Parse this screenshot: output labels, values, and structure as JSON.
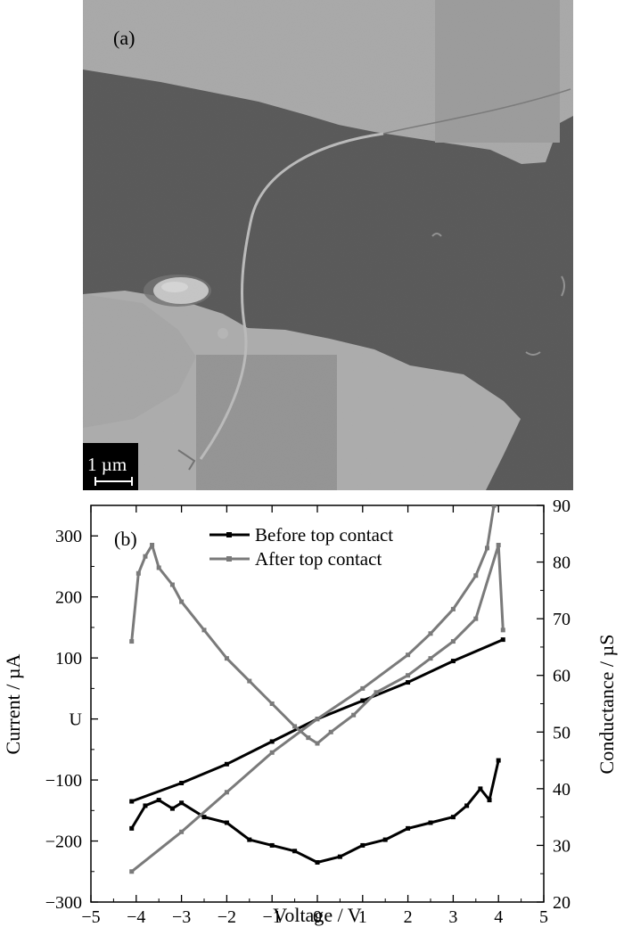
{
  "panel_a": {
    "label": "(a)",
    "scale_bar_label": "1 µm"
  },
  "panel_b": {
    "label": "(b)"
  },
  "chart_data": {
    "type": "line",
    "xlabel": "Voltage / V",
    "ylabel_left": "Current  / µA",
    "ylabel_right": "Conductance / µS",
    "xlim": [
      -5,
      5
    ],
    "ylim_left": [
      -300,
      350
    ],
    "ylim_right": [
      20,
      90
    ],
    "x_ticks": [
      "−5",
      "−4",
      "−3",
      "−2",
      "−1",
      "0",
      "1",
      "2",
      "3",
      "4",
      "5"
    ],
    "y_left_ticks": [
      {
        "value": 300,
        "label": "300"
      },
      {
        "value": 200,
        "label": "200"
      },
      {
        "value": 100,
        "label": "100"
      },
      {
        "value": 0,
        "label": "U"
      },
      {
        "value": -100,
        "label": "−100"
      },
      {
        "value": -200,
        "label": "−200"
      },
      {
        "value": -300,
        "label": "−300"
      }
    ],
    "y_right_ticks": [
      "90",
      "80",
      "70",
      "60",
      "50",
      "40",
      "30",
      "20"
    ],
    "legend_position": "top-center",
    "series": [
      {
        "name": "Before top contact",
        "color": "#000000",
        "current_x": [
          -4.1,
          -3,
          -2,
          -1,
          0,
          1,
          2,
          3,
          4.1
        ],
        "current_y": [
          -135,
          -105,
          -74,
          -37,
          0,
          30,
          60,
          95,
          130
        ],
        "conductance_x": [
          -4.1,
          -3.8,
          -3.5,
          -3.2,
          -3.0,
          -2.5,
          -2.0,
          -1.5,
          -1.0,
          -0.5,
          0.0,
          0.5,
          1.0,
          1.5,
          2.0,
          2.5,
          3.0,
          3.3,
          3.6,
          3.8,
          4.0
        ],
        "conductance_y": [
          33,
          37,
          38,
          36.5,
          37.5,
          35,
          34,
          31,
          30,
          29,
          27,
          28,
          30,
          31,
          33,
          34,
          35,
          37,
          40,
          38,
          45
        ]
      },
      {
        "name": "After top contact",
        "color": "#7a7a7a",
        "current_x": [
          -4.1,
          -3,
          -2,
          -1,
          0,
          1,
          2,
          2.5,
          3,
          3.5,
          3.75,
          3.9
        ],
        "current_y": [
          -250,
          -185,
          -120,
          -55,
          0,
          50,
          105,
          140,
          180,
          235,
          280,
          350
        ],
        "conductance_x": [
          -4.1,
          -3.95,
          -3.8,
          -3.65,
          -3.5,
          -3.2,
          -3.0,
          -2.5,
          -2.0,
          -1.5,
          -1.0,
          -0.5,
          -0.2,
          0.0,
          0.3,
          0.8,
          1.3,
          2.0,
          2.5,
          3.0,
          3.5,
          4.0,
          4.1
        ],
        "conductance_y": [
          66,
          78,
          81,
          83,
          79,
          76,
          73,
          68,
          63,
          59,
          55,
          51,
          49,
          48,
          50,
          53,
          57,
          60,
          63,
          66,
          70,
          83,
          68
        ]
      }
    ]
  }
}
